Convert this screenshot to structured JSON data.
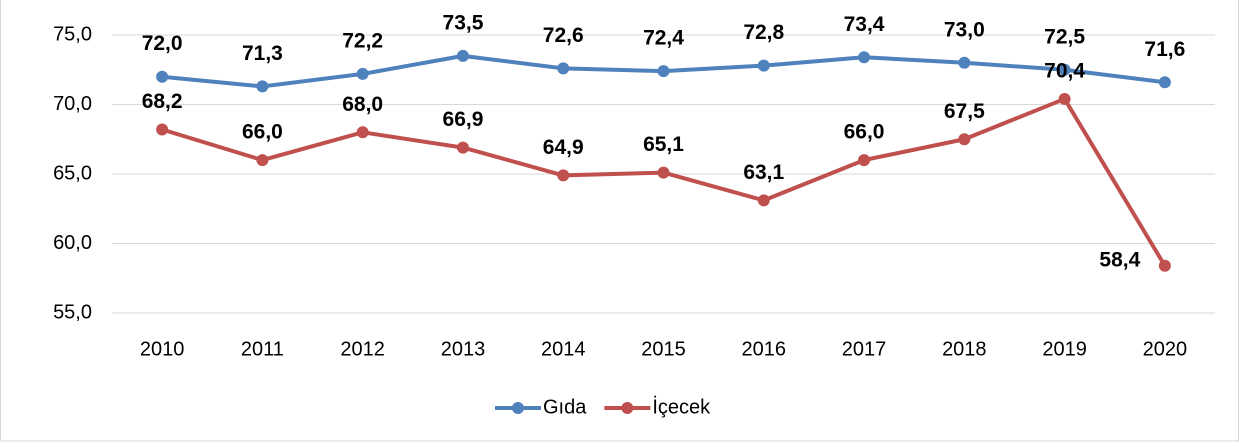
{
  "chart_data": {
    "type": "line",
    "categories": [
      "2010",
      "2011",
      "2012",
      "2013",
      "2014",
      "2015",
      "2016",
      "2017",
      "2018",
      "2019",
      "2020"
    ],
    "series": [
      {
        "name": "Gıda",
        "color": "#4f81bd",
        "label_color": "#3e6fa8",
        "values": [
          72.0,
          71.3,
          72.2,
          73.5,
          72.6,
          72.4,
          72.8,
          73.4,
          73.0,
          72.5,
          71.6
        ],
        "value_labels": [
          "72,0",
          "71,3",
          "72,2",
          "73,5",
          "72,6",
          "72,4",
          "72,8",
          "73,4",
          "73,0",
          "72,5",
          "71,6"
        ]
      },
      {
        "name": "İçecek",
        "color": "#c0504d",
        "label_color": "#c00000",
        "values": [
          68.2,
          66.0,
          68.0,
          66.9,
          64.9,
          65.1,
          63.1,
          66.0,
          67.5,
          70.4,
          58.4
        ],
        "value_labels": [
          "68,2",
          "66,0",
          "68,0",
          "66,9",
          "64,9",
          "65,1",
          "63,1",
          "66,0",
          "67,5",
          "70,4",
          "58,4"
        ]
      }
    ],
    "ylim": [
      55,
      75
    ],
    "yticks": [
      {
        "value": 55,
        "label": "55,0"
      },
      {
        "value": 60,
        "label": "60,0"
      },
      {
        "value": 65,
        "label": "65,0"
      },
      {
        "value": 70,
        "label": "70,0"
      },
      {
        "value": 75,
        "label": "75,0"
      }
    ],
    "grid": true,
    "legend": "bottom"
  }
}
